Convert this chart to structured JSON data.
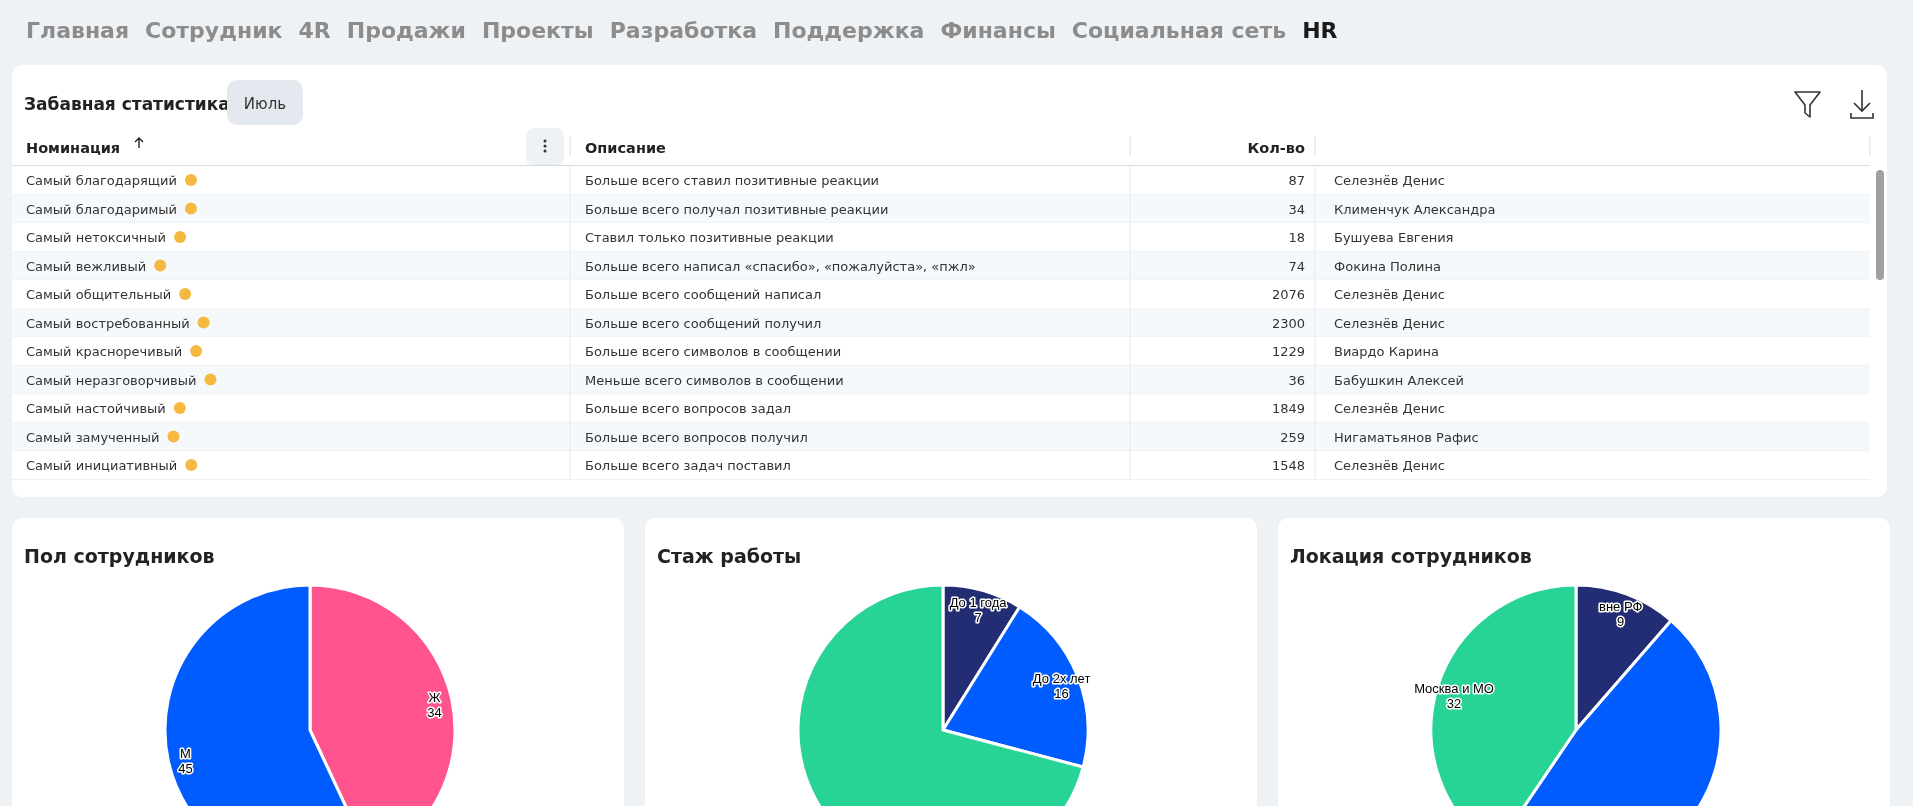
{
  "chart_data": [
    {
      "type": "other",
      "annotations": [
        "Главная",
        "Сотрудник",
        "4R",
        "Продажи",
        "Проекты",
        "Разработка",
        "Поддержка",
        "Финансы",
        "Социальная сеть",
        "HR"
      ]
    },
    {
      "type": "other",
      "title": "Забавная статистика",
      "xlabel": "Номинация",
      "ylabel": "Кол-во",
      "categories": [
        "Самый благодарящий",
        "Самый благодаримый",
        "Самый нетоксичный",
        "Самый вежливый",
        "Самый общительный",
        "Самый востребованный",
        "Самый красноречивый",
        "Самый неразговорчивый",
        "Самый настойчивый",
        "Самый замученный",
        "Самый инициативный"
      ],
      "values": [
        87,
        34,
        18,
        74,
        2076,
        2300,
        1229,
        36,
        1849,
        259,
        1548
      ],
      "data_labels": true,
      "annotations": [
        "Июль",
        "Описание",
        "Больше всего ставил позитивные реакции",
        "Больше всего получал позитивные реакции",
        "Ставил только позитивные реакции",
        "Больше всего написал «спасибо», «пожалуйста», «пжл»",
        "Больше всего сообщений написал",
        "Больше всего сообщений получил",
        "Больше всего символов в сообщении",
        "Меньше всего символов в сообщении",
        "Больше всего вопросов задал",
        "Больше всего вопросов получил",
        "Больше всего задач поставил",
        "Селезнёв Денис",
        "Клименчук Александра",
        "Бушуева Евгения",
        "Фокина Полина",
        "Селезнёв Денис",
        "Селезнёв Денис",
        "Виардо Карина",
        "Бабушкин Алексей",
        "Селезнёв Денис",
        "Нигаматьянов Рафис",
        "Селезнёв Денис"
      ]
    },
    {
      "type": "pie",
      "title": "Пол сотрудников",
      "categories": [
        "Ж",
        "М"
      ],
      "values": [
        34,
        45
      ],
      "colors": [
        "#ff548d",
        "#005cff"
      ],
      "value_labels": [
        "34",
        "45"
      ]
    },
    {
      "type": "pie",
      "title": "Стаж работы",
      "categories": [
        "До 1 года",
        "До 2х лет",
        null
      ],
      "values": [
        7,
        16,
        56
      ],
      "colors": [
        "#222d73",
        "#005cff",
        "#27d496"
      ],
      "value_labels": [
        "7",
        "16",
        null
      ]
    },
    {
      "type": "pie",
      "title": "Локация сотрудников",
      "categories": [
        "вне РФ",
        null,
        "Москва и МО"
      ],
      "values": [
        9,
        38,
        32
      ],
      "colors": [
        "#222d73",
        "#005cff",
        "#27d496"
      ],
      "value_labels": [
        "9",
        null,
        "32"
      ]
    }
  ]
}
